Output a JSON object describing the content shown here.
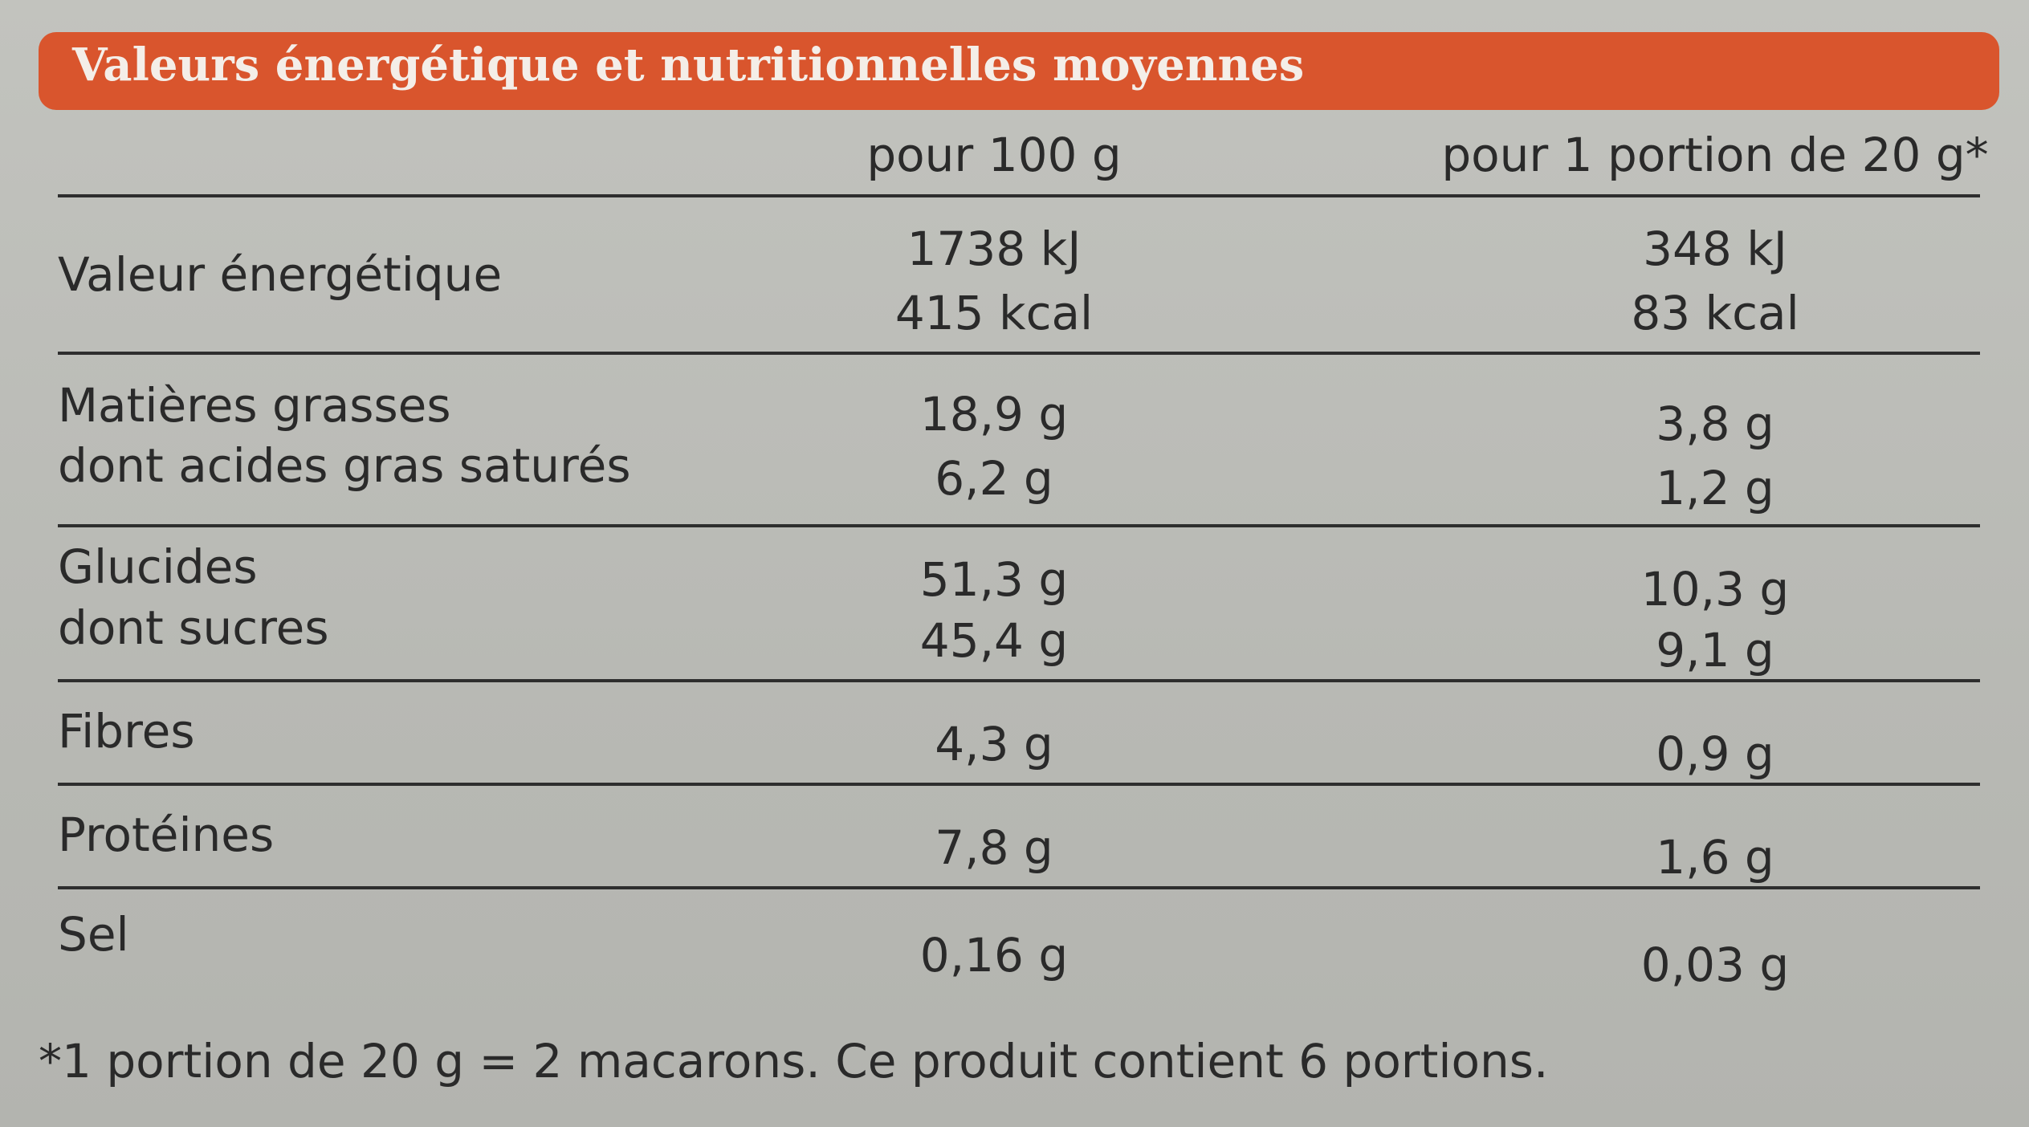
{
  "header": {
    "title": "Valeurs énergétique et nutritionnelles moyennes"
  },
  "table": {
    "columns": [
      "pour 100 g",
      "pour 1 portion de 20 g*"
    ],
    "rows": [
      {
        "labels": [
          "Valeur énergétique"
        ],
        "per100": [
          "1738 kJ",
          "415 kcal"
        ],
        "portion": [
          "348 kJ",
          "83 kcal"
        ]
      },
      {
        "labels": [
          "Matières grasses",
          "dont acides gras saturés"
        ],
        "per100": [
          "18,9 g",
          "6,2 g"
        ],
        "portion": [
          "3,8 g",
          "1,2 g"
        ]
      },
      {
        "labels": [
          "Glucides",
          "dont sucres"
        ],
        "per100": [
          "51,3 g",
          "45,4 g"
        ],
        "portion": [
          "10,3 g",
          "9,1 g"
        ]
      },
      {
        "labels": [
          "Fibres"
        ],
        "per100": [
          "4,3 g"
        ],
        "portion": [
          "0,9 g"
        ]
      },
      {
        "labels": [
          "Protéines"
        ],
        "per100": [
          "7,8 g"
        ],
        "portion": [
          "1,6 g"
        ]
      },
      {
        "labels": [
          "Sel"
        ],
        "per100": [
          "0,16 g"
        ],
        "portion": [
          "0,03 g"
        ]
      }
    ]
  },
  "footnote": "*1 portion de 20 g = 2 macarons. Ce produit contient 6 portions."
}
